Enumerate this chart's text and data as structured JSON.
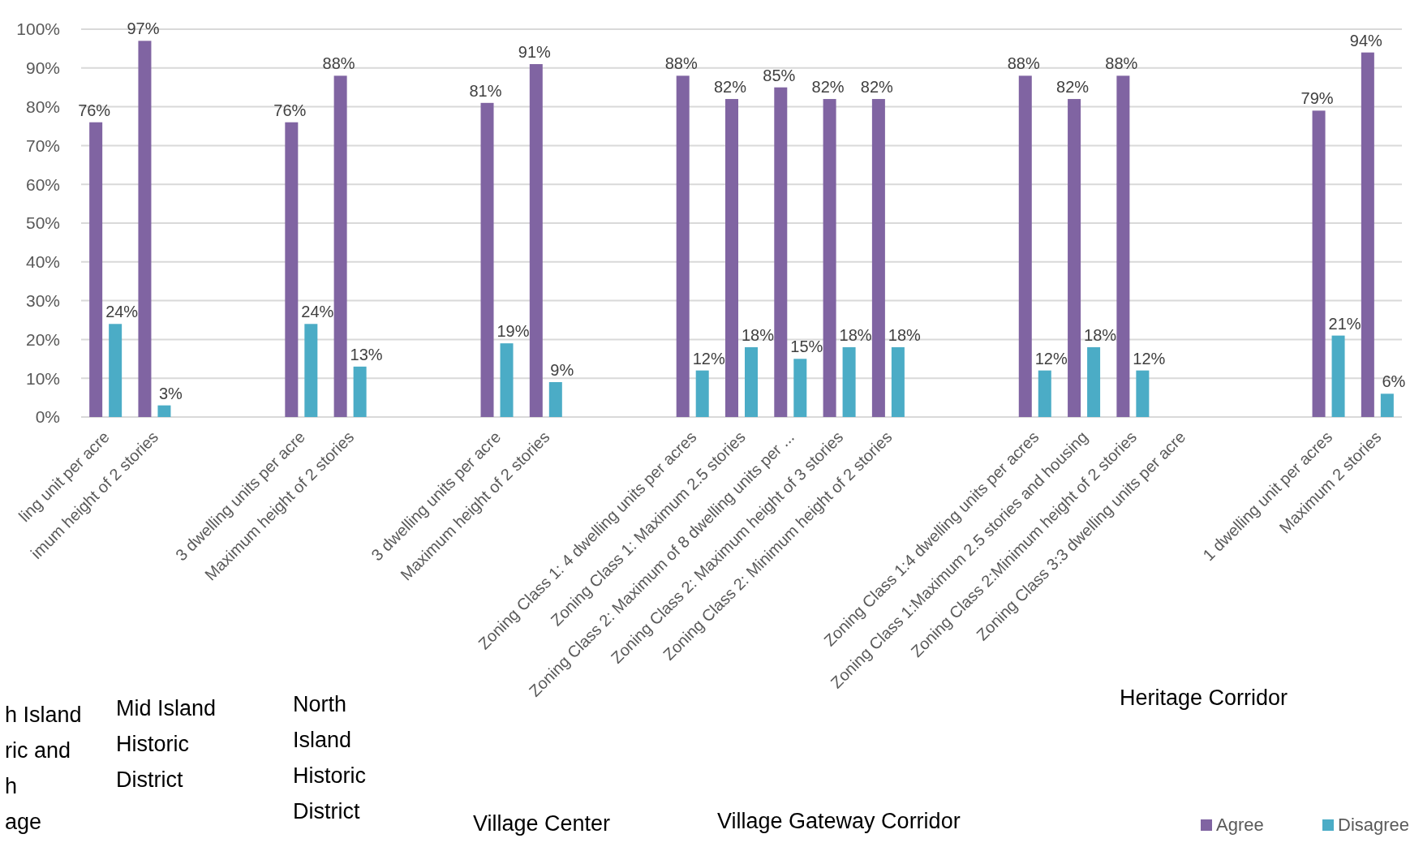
{
  "chart_data": {
    "type": "bar",
    "categories": [
      "ling unit per acre",
      "imum height of 2 stories",
      null,
      null,
      "3 dwelling units per acre",
      "Maximum height of 2 stories",
      null,
      null,
      "3 dwelling units per acre",
      "Maximum height of 2 stories",
      null,
      null,
      "Zoning Class 1: 4 dwelling units per acres",
      "Zoning Class 1: Maximum 2.5 stories",
      "Zoning Class 2: Maximum of 8 dwelling units per ...",
      "Zoning Class 2: Maximum height of 3 stories",
      "Zoning Class 2: Minimum height of 2 stories",
      null,
      null,
      "Zoning Class 1:4 dwelling units per acres",
      "Zoning Class 1:Maximum 2.5 stories and housing",
      "Zoning Class 2:Minimum height of 2 stories",
      "Zoning Class 3:3 dwelling units per acre",
      null,
      null,
      "1 dwelling unit per acres",
      "Maximum 2 stories"
    ],
    "series": [
      {
        "name": "Agree",
        "color": "#8064a2",
        "values": [
          76,
          97,
          null,
          null,
          76,
          88,
          null,
          null,
          81,
          91,
          null,
          null,
          88,
          82,
          85,
          82,
          82,
          null,
          null,
          88,
          82,
          88,
          null,
          null,
          null,
          79,
          94
        ]
      },
      {
        "name": "Disagree",
        "color": "#4bacc6",
        "values": [
          24,
          3,
          null,
          null,
          24,
          13,
          null,
          null,
          19,
          9,
          null,
          null,
          12,
          18,
          15,
          18,
          18,
          null,
          null,
          12,
          18,
          12,
          null,
          null,
          null,
          21,
          6
        ]
      }
    ],
    "ylim": [
      0,
      100
    ],
    "yticks": [
      {
        "value": 0,
        "label": "0%"
      },
      {
        "value": 10,
        "label": "10%"
      },
      {
        "value": 20,
        "label": "20%"
      },
      {
        "value": 30,
        "label": "30%"
      },
      {
        "value": 40,
        "label": "40%"
      },
      {
        "value": 50,
        "label": "50%"
      },
      {
        "value": 60,
        "label": "60%"
      },
      {
        "value": 70,
        "label": "70%"
      },
      {
        "value": 80,
        "label": "80%"
      },
      {
        "value": 90,
        "label": "90%"
      },
      {
        "value": 100,
        "label": "100%"
      }
    ],
    "value_labels": [
      [
        "76%",
        "97%",
        null,
        null,
        "76%",
        "88%",
        null,
        null,
        "81%",
        "91%",
        null,
        null,
        "88%",
        "82%",
        "85%",
        "82%",
        "82%",
        null,
        null,
        "88%",
        "82%",
        "88%",
        null,
        null,
        null,
        "79%",
        "94%"
      ],
      [
        "24%",
        "3%",
        null,
        null,
        "24%",
        "13%",
        null,
        null,
        "19%",
        "9%",
        null,
        null,
        "12%",
        "18%",
        "15%",
        "18%",
        "18%",
        null,
        null,
        "12%",
        "18%",
        "12%",
        null,
        null,
        null,
        "21%",
        "6%"
      ]
    ],
    "grid": "y",
    "legend": "bottom right",
    "annotations": [
      "h Island\nric and\nh\nage",
      "Mid Island\nHistoric\nDistrict",
      "North\nIsland\nHistoric\nDistrict",
      "Village Center",
      "Village Gateway Corridor",
      "Heritage Corridor"
    ]
  }
}
